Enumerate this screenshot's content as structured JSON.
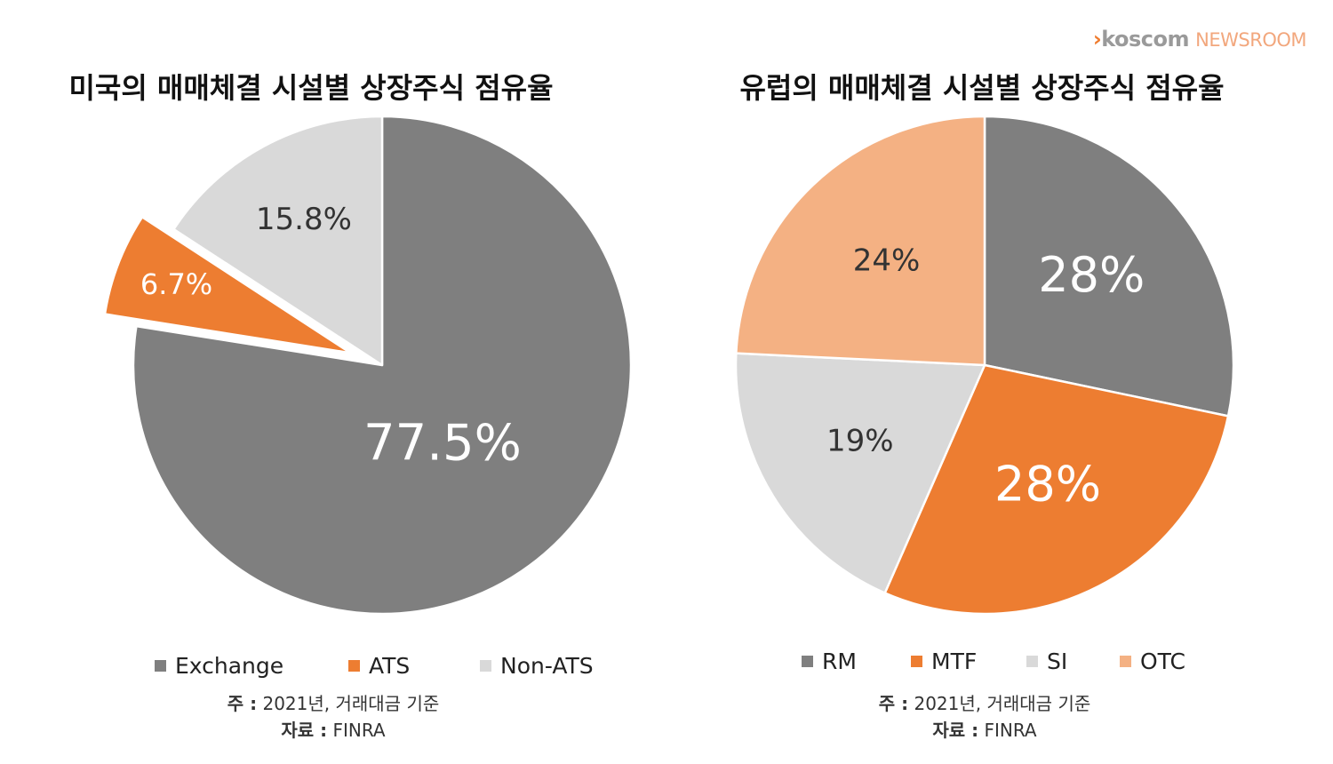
{
  "brand": {
    "chevron": "›",
    "name": "koscom",
    "suffix": "NEWSROOM"
  },
  "chart_data": [
    {
      "type": "pie",
      "title": "미국의 매매체결 시설별 상장주식 점유율",
      "slices": [
        {
          "label": "Exchange",
          "value": 77.5,
          "display": "77.5%",
          "color": "#7f7f7f",
          "label_color": "#ffffff",
          "exploded": false
        },
        {
          "label": "ATS",
          "value": 6.7,
          "display": "6.7%",
          "color": "#ed7d31",
          "label_color": "#ffffff",
          "exploded": true
        },
        {
          "label": "Non-ATS",
          "value": 15.8,
          "display": "15.8%",
          "color": "#d9d9d9",
          "label_color": "#333333",
          "exploded": false
        }
      ],
      "legend": [
        "Exchange",
        "ATS",
        "Non-ATS"
      ],
      "legend_position": "bottom",
      "note": {
        "label": "주 :",
        "text": "2021년, 거래대금 기준"
      },
      "source": {
        "label": "자료 :",
        "text": "FINRA"
      }
    },
    {
      "type": "pie",
      "title": "유럽의 매매체결 시설별 상장주식 점유율",
      "slices": [
        {
          "label": "RM",
          "value": 28,
          "display": "28%",
          "color": "#7f7f7f",
          "label_color": "#ffffff"
        },
        {
          "label": "MTF",
          "value": 28,
          "display": "28%",
          "color": "#ed7d31",
          "label_color": "#ffffff"
        },
        {
          "label": "SI",
          "value": 19,
          "display": "19%",
          "color": "#d9d9d9",
          "label_color": "#333333"
        },
        {
          "label": "OTC",
          "value": 24,
          "display": "24%",
          "color": "#f4b183",
          "label_color": "#333333"
        }
      ],
      "legend": [
        "RM",
        "MTF",
        "SI",
        "OTC"
      ],
      "legend_position": "bottom",
      "note": {
        "label": "주 :",
        "text": "2021년, 거래대금 기준"
      },
      "source": {
        "label": "자료 :",
        "text": "FINRA"
      }
    }
  ]
}
